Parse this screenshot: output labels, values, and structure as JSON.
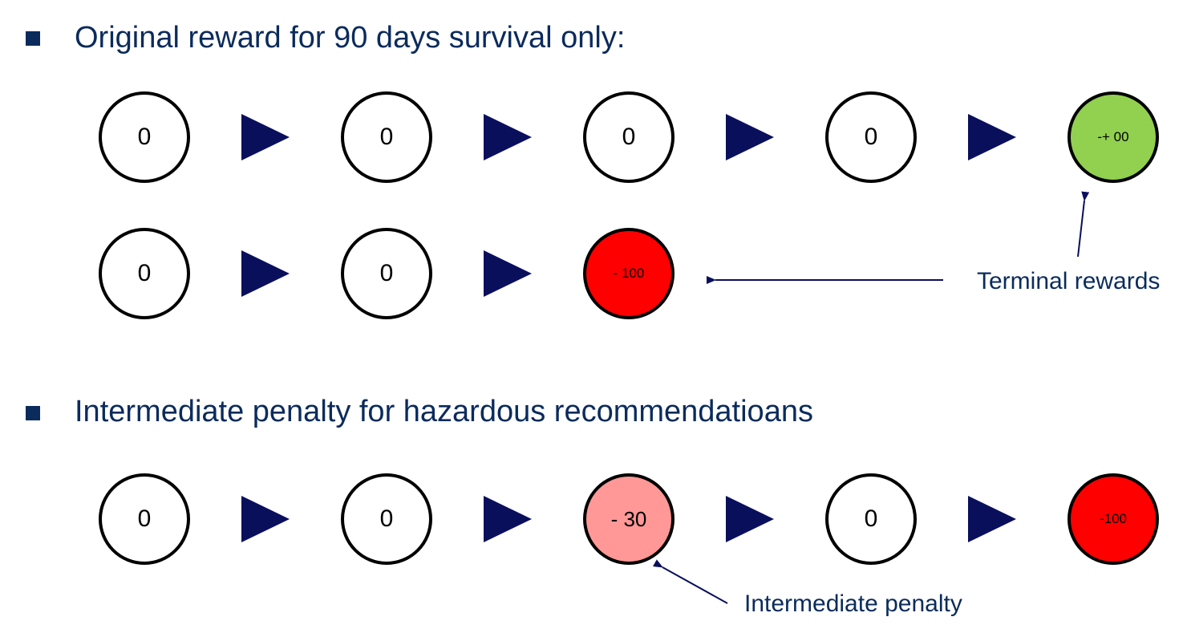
{
  "section1": {
    "heading": "Original reward for 90 days survival only:",
    "row_a": [
      "0",
      "0",
      "0",
      "0",
      "-+ 00"
    ],
    "row_b": [
      "0",
      "0",
      "- 100"
    ]
  },
  "section2": {
    "heading": "Intermediate penalty for hazardous recommendatioans",
    "row_c": [
      "0",
      "0",
      "- 30",
      "0",
      "-100"
    ]
  },
  "annotations": {
    "terminal_rewards": "Terminal rewards",
    "intermediate_penalty": "Intermediate penalty"
  },
  "colors": {
    "heading_text": "#0b2b5c",
    "arrow_fill": "#0a0f5c",
    "success_node": "#92d050",
    "terminal_penalty_node": "#ff0000",
    "intermediate_penalty_node": "#ff9896"
  }
}
